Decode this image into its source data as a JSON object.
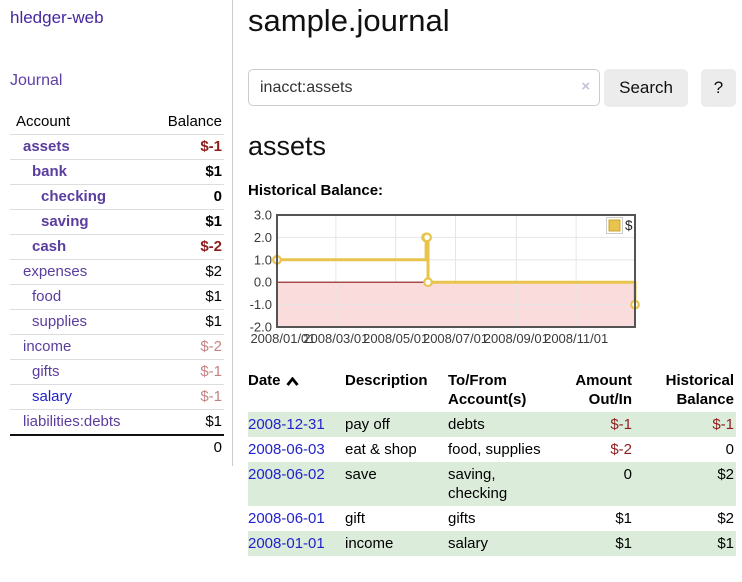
{
  "sidebar": {
    "brand": "hledger-web",
    "journal_link": "Journal",
    "accounts": {
      "header_account": "Account",
      "header_balance": "Balance",
      "rows": [
        {
          "name": "assets",
          "balance": "$-1",
          "indent": 1,
          "bold": true,
          "link_color": "purple",
          "balance_class": "neg"
        },
        {
          "name": "bank",
          "balance": "$1",
          "indent": 2,
          "bold": true,
          "link_color": "purple",
          "balance_class": ""
        },
        {
          "name": "checking",
          "balance": "0",
          "indent": 3,
          "bold": true,
          "link_color": "purple",
          "balance_class": ""
        },
        {
          "name": "saving",
          "balance": "$1",
          "indent": 3,
          "bold": true,
          "link_color": "purple",
          "balance_class": ""
        },
        {
          "name": "cash",
          "balance": "$-2",
          "indent": 2,
          "bold": true,
          "link_color": "purple",
          "balance_class": "neg"
        },
        {
          "name": "expenses",
          "balance": "$2",
          "indent": 1,
          "bold": false,
          "link_color": "purple",
          "balance_class": ""
        },
        {
          "name": "food",
          "balance": "$1",
          "indent": 2,
          "bold": false,
          "link_color": "purple",
          "balance_class": ""
        },
        {
          "name": "supplies",
          "balance": "$1",
          "indent": 2,
          "bold": false,
          "link_color": "purple",
          "balance_class": ""
        },
        {
          "name": "income",
          "balance": "$-2",
          "indent": 1,
          "bold": false,
          "link_color": "purple",
          "balance_class": "neg-muted"
        },
        {
          "name": "gifts",
          "balance": "$-1",
          "indent": 2,
          "bold": false,
          "link_color": "purple",
          "balance_class": "neg-muted"
        },
        {
          "name": "salary",
          "balance": "$-1",
          "indent": 2,
          "bold": false,
          "link_color": "blue",
          "balance_class": "neg-muted"
        },
        {
          "name": "liabilities:debts",
          "balance": "$1",
          "indent": 1,
          "bold": false,
          "link_color": "purple",
          "balance_class": ""
        }
      ],
      "total": "0"
    }
  },
  "header": {
    "title": "sample.journal"
  },
  "search": {
    "value": "inacct:assets",
    "clear_icon": "×",
    "search_button": "Search",
    "help_button": "?"
  },
  "account_page": {
    "title": "assets",
    "chart_label": "Historical Balance:"
  },
  "chart_data": {
    "type": "line",
    "step": true,
    "title": "Historical Balance:",
    "xlim": [
      "2008-01-01",
      "2008-12-31"
    ],
    "ylim": [
      -2,
      3
    ],
    "x_ticks": [
      "2008/01/01",
      "2008/03/01",
      "2008/05/01",
      "2008/07/01",
      "2008/09/01",
      "2008/11/01"
    ],
    "y_ticks": [
      3.0,
      2.0,
      1.0,
      0.0,
      -1.0,
      -2.0
    ],
    "grid": true,
    "legend_position": "top-right",
    "negative_region_fill": "#fbdcdc",
    "zero_line_color": "#8b1a1a",
    "series": [
      {
        "name": "$",
        "color": "#e9c44d",
        "points": [
          {
            "date": "2008-01-01",
            "value": 1
          },
          {
            "date": "2008-06-01",
            "value": 2
          },
          {
            "date": "2008-06-02",
            "value": 2
          },
          {
            "date": "2008-06-03",
            "value": 0
          },
          {
            "date": "2008-12-31",
            "value": -1
          }
        ]
      }
    ]
  },
  "register_table": {
    "columns": [
      {
        "label": "Date",
        "sort": "ascending"
      },
      {
        "label": "Description"
      },
      {
        "label": "To/From Account(s)",
        "line1": "To/From",
        "line2": "Account(s)"
      },
      {
        "label": "Amount Out/In",
        "line1": "Amount",
        "line2": "Out/In"
      },
      {
        "label": "Historical Balance",
        "line1": "Historical",
        "line2": "Balance"
      }
    ],
    "rows": [
      {
        "date": "2008-12-31",
        "description": "pay off",
        "accounts": "debts",
        "amount": "$-1",
        "amount_negative": true,
        "balance": "$-1",
        "balance_negative": true
      },
      {
        "date": "2008-06-03",
        "description": "eat & shop",
        "accounts": "food, supplies",
        "amount": "$-2",
        "amount_negative": true,
        "balance": "0",
        "balance_negative": false
      },
      {
        "date": "2008-06-02",
        "description": "save",
        "accounts": "saving, checking",
        "amount": "0",
        "amount_negative": false,
        "balance": "$2",
        "balance_negative": false
      },
      {
        "date": "2008-06-01",
        "description": "gift",
        "accounts": "gifts",
        "amount": "$1",
        "amount_negative": false,
        "balance": "$2",
        "balance_negative": false
      },
      {
        "date": "2008-01-01",
        "description": "income",
        "accounts": "salary",
        "amount": "$1",
        "amount_negative": false,
        "balance": "$1",
        "balance_negative": false
      }
    ]
  },
  "colors": {
    "link_purple": "#5b3d9e",
    "link_blue": "#2222cc",
    "negative_strong": "#8f1d1d",
    "negative_muted": "#c48382",
    "row_stripe_green": "#dcecdb",
    "chart_line_gold": "#e9c44d",
    "chart_negative_pink": "#fbdcdc",
    "chart_zero_red": "#8b1a1a",
    "chart_border_gray": "#545454",
    "button_gray": "#ececec"
  }
}
